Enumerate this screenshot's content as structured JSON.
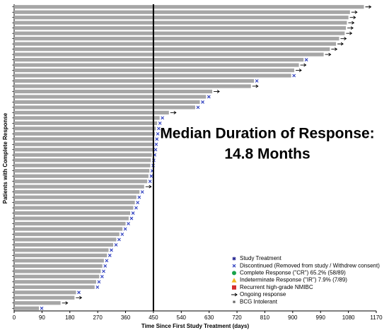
{
  "chart_data": {
    "type": "swimmer",
    "x_label": "Time Since First Study Treatment (days)",
    "y_label": "Patients with Complete Response",
    "annotation": [
      "Median Duration of Response:",
      "14.8 Months"
    ],
    "median_line": 450,
    "xlim": [
      0,
      1170
    ],
    "xticks": [
      0,
      90,
      180,
      270,
      360,
      450,
      540,
      630,
      720,
      810,
      900,
      990,
      1080,
      1170
    ],
    "bar_color": "#a6a6a6",
    "values": [
      1130,
      1085,
      1080,
      1075,
      1072,
      1068,
      1050,
      1040,
      1020,
      1000,
      935,
      920,
      905,
      895,
      775,
      765,
      640,
      620,
      600,
      585,
      500,
      470,
      462,
      458,
      455,
      452,
      450,
      448,
      445,
      442,
      440,
      437,
      434,
      430,
      420,
      405,
      395,
      390,
      385,
      375,
      370,
      360,
      350,
      340,
      330,
      320,
      305,
      300,
      290,
      285,
      280,
      275,
      265,
      260,
      200,
      195,
      150,
      80
    ],
    "status": [
      "ongoing",
      "ongoing",
      "ongoing",
      "ongoing",
      "ongoing",
      "ongoing",
      "ongoing",
      "ongoing",
      "ongoing",
      "ongoing",
      "discontinued",
      "ongoing",
      "ongoing",
      "discontinued",
      "discontinued",
      "ongoing",
      "ongoing",
      "discontinued",
      "discontinued",
      "discontinued",
      "ongoing",
      "discontinued",
      "discontinued",
      "discontinued",
      "discontinued",
      "discontinued",
      "discontinued",
      "discontinued",
      "discontinued",
      "discontinued",
      "discontinued",
      "discontinued",
      "discontinued",
      "discontinued",
      "ongoing",
      "discontinued",
      "discontinued",
      "discontinued",
      "discontinued",
      "discontinued",
      "discontinued",
      "discontinued",
      "discontinued",
      "discontinued",
      "discontinued",
      "discontinued",
      "discontinued",
      "discontinued",
      "discontinued",
      "discontinued",
      "discontinued",
      "discontinued",
      "discontinued",
      "discontinued",
      "discontinued",
      "ongoing",
      "ongoing",
      "discontinued"
    ],
    "legend": [
      {
        "label": "Study Treatment",
        "symbol": "star",
        "color": "#1f1f8f"
      },
      {
        "label": "Discontinued (Removed from study / Withdrew consent)",
        "symbol": "x",
        "color": "#2e3fbf"
      },
      {
        "label": "Complete Response (\"CR\") 65.2% (58/89)",
        "symbol": "circle",
        "color": "#1aa34a"
      },
      {
        "label": "Indeterminate Response (\"IR\") 7.9% (7/89)",
        "symbol": "triangle",
        "color": "#f2b61f"
      },
      {
        "label": "Recurrent high-grade NMIBC",
        "symbol": "square",
        "color": "#d42e2e"
      },
      {
        "label": "Ongoing response",
        "symbol": "arrow",
        "color": "#000000"
      },
      {
        "label": "BCG Intolerant",
        "symbol": "asterisk",
        "color": "#666666"
      }
    ]
  }
}
